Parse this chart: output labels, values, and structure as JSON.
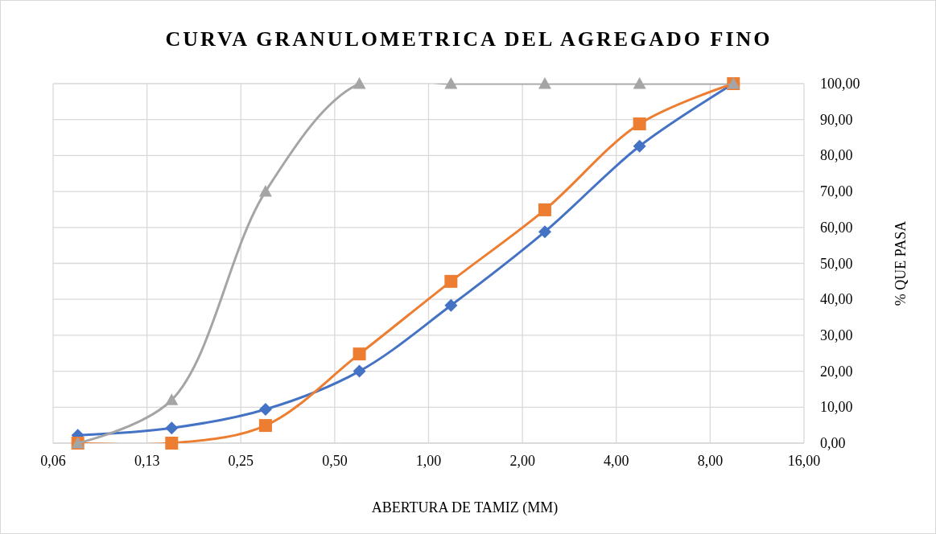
{
  "chart_data": {
    "type": "line",
    "title": "CURVA GRANULOMETRICA DEL AGREGADO FINO",
    "xlabel": "ABERTURA DE TAMIZ (MM)",
    "ylabel": "% QUE PASA",
    "x": [
      0.075,
      0.15,
      0.3,
      0.6,
      1.18,
      2.36,
      4.75,
      9.5
    ],
    "series": [
      {
        "color": "#4472c4",
        "marker": "diamond",
        "values": [
          2.2,
          4.2,
          9.4,
          20,
          38.3,
          58.8,
          82.6,
          100
        ]
      },
      {
        "color": "#ed7d31",
        "marker": "square",
        "values": [
          0,
          0,
          4.9,
          24.8,
          45,
          64.9,
          88.8,
          100
        ]
      },
      {
        "color": "#a5a5a5",
        "marker": "triangle",
        "values": [
          0,
          12,
          70,
          100,
          100,
          100,
          100,
          100
        ]
      }
    ],
    "log": "x",
    "xlim": [
      0.0625,
      16
    ],
    "xticks": [
      {
        "value": 0.0625,
        "label": "0,06"
      },
      {
        "value": 0.125,
        "label": "0,13"
      },
      {
        "value": 0.25,
        "label": "0,25"
      },
      {
        "value": 0.5,
        "label": "0,50"
      },
      {
        "value": 1,
        "label": "1,00"
      },
      {
        "value": 2,
        "label": "2,00"
      },
      {
        "value": 4,
        "label": "4,00"
      },
      {
        "value": 8,
        "label": "8,00"
      },
      {
        "value": 16,
        "label": "16,00"
      }
    ],
    "ylim": [
      0,
      100
    ],
    "yticks": [
      {
        "value": 0,
        "label": "0,00"
      },
      {
        "value": 10,
        "label": "10,00"
      },
      {
        "value": 20,
        "label": "20,00"
      },
      {
        "value": 30,
        "label": "30,00"
      },
      {
        "value": 40,
        "label": "40,00"
      },
      {
        "value": 50,
        "label": "50,00"
      },
      {
        "value": 60,
        "label": "60,00"
      },
      {
        "value": 70,
        "label": "70,00"
      },
      {
        "value": 80,
        "label": "80,00"
      },
      {
        "value": 90,
        "label": "90,00"
      },
      {
        "value": 100,
        "label": "100,00"
      }
    ],
    "grid": true
  }
}
